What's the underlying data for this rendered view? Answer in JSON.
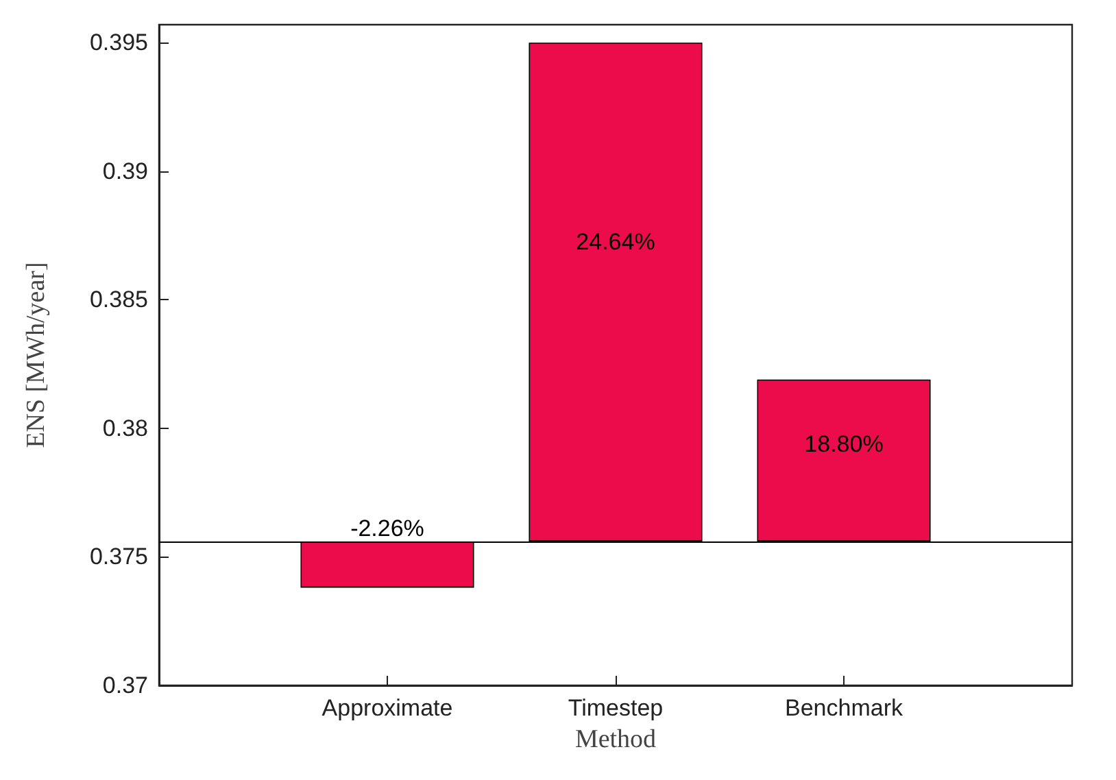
{
  "chart_data": {
    "type": "bar",
    "xlabel": "Method",
    "ylabel": "ENS [MWh/year]",
    "categories": [
      null,
      "Approximate",
      "Timestep",
      "Benchmark",
      null
    ],
    "values": [
      null,
      -0.0018,
      0.0194,
      0.0063,
      null
    ],
    "base": [
      null,
      0.3756,
      0.3756,
      0.3756,
      null
    ],
    "annotations": [
      "-2.26%",
      "24.64%",
      "18.80%"
    ],
    "color": "#ec0c4c",
    "ylim": [
      0.37,
      0.3957
    ],
    "yticks": [
      0.37,
      0.375,
      0.38,
      0.385,
      0.39,
      0.395
    ],
    "ref_lines": [
      {
        "axis": "y",
        "value": 0.3756,
        "color": "#000000"
      }
    ],
    "grid": false
  }
}
